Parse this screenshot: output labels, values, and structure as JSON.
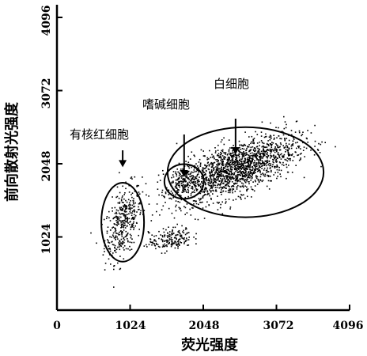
{
  "chart_data": {
    "type": "scatter",
    "xlabel": "荧光强度",
    "ylabel": "前向散射光强度",
    "xlim": [
      0,
      4096
    ],
    "ylim": [
      0,
      4096
    ],
    "x_ticks": [
      "0",
      "1024",
      "2048",
      "3072",
      "4096"
    ],
    "y_ticks": [
      "1024",
      "2048",
      "3072",
      "4096"
    ],
    "grid": false,
    "clusters": [
      {
        "label": "有核红细胞",
        "center": [
          920,
          1230
        ],
        "spread": [
          130,
          230
        ],
        "gated": true
      },
      {
        "label": "嗜碱细胞",
        "center": [
          1780,
          1800
        ],
        "spread": [
          120,
          90
        ],
        "gated": true
      },
      {
        "label": "白细胞",
        "center": [
          2500,
          1990
        ],
        "spread": [
          420,
          180
        ],
        "gated": true
      },
      {
        "label": "",
        "center": [
          1580,
          1000
        ],
        "spread": [
          150,
          80
        ],
        "gated": false
      }
    ],
    "annotations": [
      {
        "text": "有核红细胞",
        "arrow_to": [
          920,
          2000
        ]
      },
      {
        "text": "嗜碱细胞",
        "arrow_to": [
          1780,
          1860
        ]
      },
      {
        "text": "白细胞",
        "arrow_to": [
          2500,
          2180
        ]
      }
    ]
  }
}
